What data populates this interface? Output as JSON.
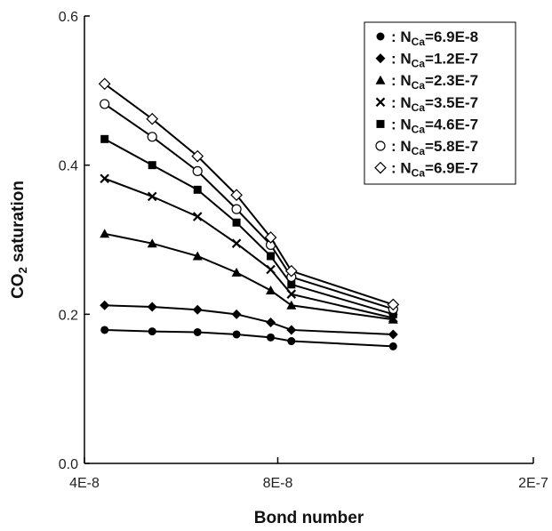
{
  "chart_data": {
    "type": "line",
    "xlabel": "Bond number",
    "ylabel": "CO2 saturation",
    "ylabel_main": "CO",
    "ylabel_sub": "2",
    "ylabel_rest": " saturation",
    "x_scale": "log",
    "xlim": [
      4e-08,
      2e-07
    ],
    "ylim": [
      0,
      0.6
    ],
    "x_ticks": [
      {
        "value": 4e-08,
        "label": "4E-8"
      },
      {
        "value": 8e-08,
        "label": "8E-8"
      },
      {
        "value": 2e-07,
        "label": "2E-7"
      }
    ],
    "y_ticks": [
      {
        "value": 0.0,
        "label": "0.0"
      },
      {
        "value": 0.2,
        "label": "0.2"
      },
      {
        "value": 0.4,
        "label": "0.4"
      },
      {
        "value": 0.6,
        "label": "0.6"
      }
    ],
    "grid": false,
    "legend_position": "top-right",
    "x": [
      4.3e-08,
      5.1e-08,
      6e-08,
      6.9e-08,
      7.8e-08,
      8.4e-08,
      1.21e-07
    ],
    "series": [
      {
        "name_prefix": "N",
        "name_sub": "Ca",
        "name_value": "=6.9E-8",
        "marker": "filled-circle",
        "values": [
          0.179,
          0.177,
          0.176,
          0.173,
          0.169,
          0.164,
          0.157
        ]
      },
      {
        "name_prefix": "N",
        "name_sub": "Ca",
        "name_value": "=1.2E-7",
        "marker": "filled-diamond",
        "values": [
          0.212,
          0.21,
          0.206,
          0.2,
          0.189,
          0.179,
          0.173
        ]
      },
      {
        "name_prefix": "N",
        "name_sub": "Ca",
        "name_value": "=2.3E-7",
        "marker": "filled-triangle",
        "values": [
          0.308,
          0.295,
          0.278,
          0.256,
          0.232,
          0.212,
          0.193
        ]
      },
      {
        "name_prefix": "N",
        "name_sub": "Ca",
        "name_value": "=3.5E-7",
        "marker": "x",
        "values": [
          0.382,
          0.358,
          0.331,
          0.295,
          0.26,
          0.227,
          0.195
        ]
      },
      {
        "name_prefix": "N",
        "name_sub": "Ca",
        "name_value": "=4.6E-7",
        "marker": "filled-square",
        "values": [
          0.435,
          0.4,
          0.367,
          0.323,
          0.278,
          0.24,
          0.2
        ]
      },
      {
        "name_prefix": "N",
        "name_sub": "Ca",
        "name_value": "=5.8E-7",
        "marker": "open-circle",
        "values": [
          0.482,
          0.438,
          0.392,
          0.341,
          0.293,
          0.25,
          0.207
        ]
      },
      {
        "name_prefix": "N",
        "name_sub": "Ca",
        "name_value": "=6.9E-7",
        "marker": "open-diamond",
        "values": [
          0.509,
          0.462,
          0.412,
          0.36,
          0.303,
          0.258,
          0.213
        ]
      }
    ]
  }
}
